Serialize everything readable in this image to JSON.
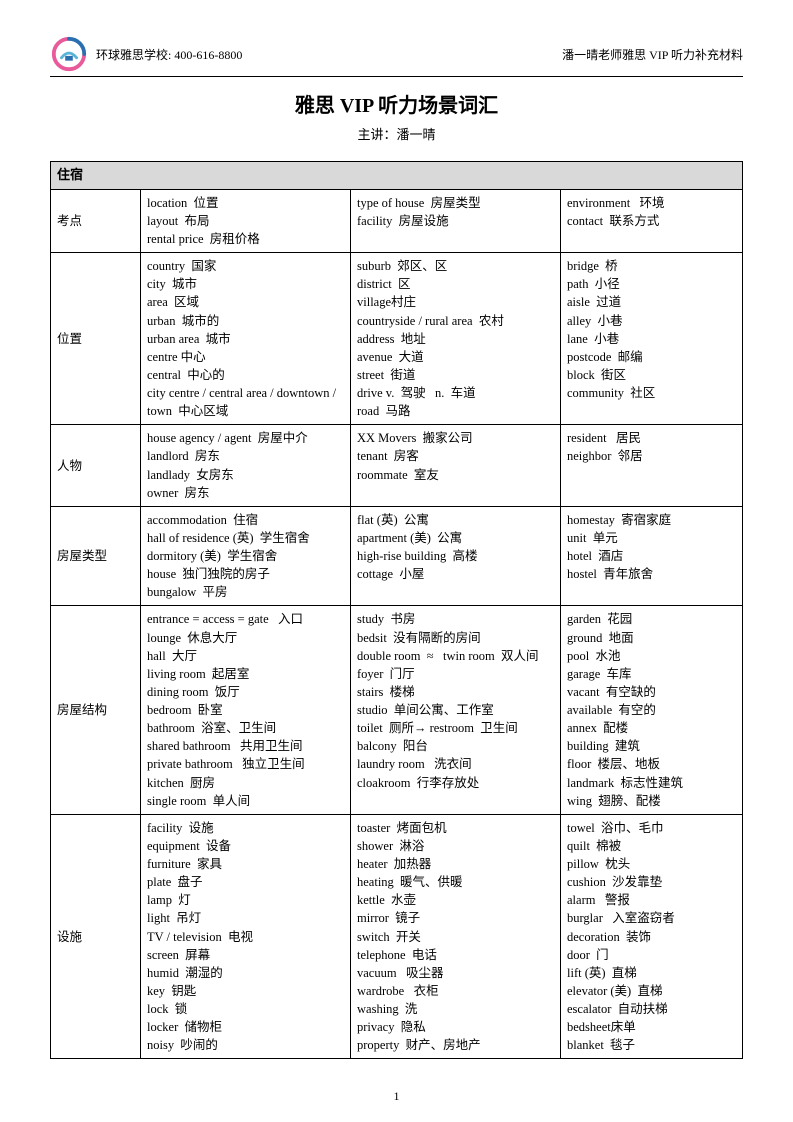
{
  "header": {
    "left_text": "环球雅思学校: 400-616-8800",
    "right_text": "潘一晴老师雅思 VIP 听力补充材料"
  },
  "title": "雅思 VIP 听力场景词汇",
  "subtitle": "主讲：潘一晴",
  "section_title": "住宿",
  "page_number": "1",
  "rows": [
    {
      "label": "考点",
      "c1": [
        "location  位置",
        "layout  布局",
        "rental price  房租价格"
      ],
      "c2": [
        "type of house  房屋类型",
        "facility  房屋设施"
      ],
      "c3": [
        "environment   环境",
        "contact  联系方式"
      ]
    },
    {
      "label": "位置",
      "c1": [
        "country  国家",
        "city  城市",
        "area  区域",
        "urban  城市的",
        "urban area  城市",
        "centre 中心",
        "central  中心的",
        "city centre / central area / downtown / town  中心区域"
      ],
      "c2": [
        "suburb  郊区、区",
        "district  区",
        "village村庄",
        "countryside / rural area  农村",
        "address  地址",
        "avenue  大道",
        "street  街道",
        "drive v.  驾驶   n.  车道",
        "road  马路"
      ],
      "c3": [
        "bridge  桥",
        "path  小径",
        "aisle  过道",
        "alley  小巷",
        "lane  小巷",
        "postcode  邮编",
        "block  街区",
        "community  社区"
      ]
    },
    {
      "label": "人物",
      "c1": [
        "house agency / agent  房屋中介",
        "landlord  房东",
        "landlady  女房东",
        "owner  房东"
      ],
      "c2": [
        "XX Movers  搬家公司",
        "tenant  房客",
        "roommate  室友"
      ],
      "c3": [
        "resident   居民",
        "neighbor  邻居"
      ]
    },
    {
      "label": "房屋类型",
      "c1": [
        "accommodation  住宿",
        "hall of residence (英)  学生宿舍",
        "dormitory (美)  学生宿舍",
        "house  独门独院的房子",
        "bungalow  平房"
      ],
      "c2": [
        "flat (英)  公寓",
        "apartment (美)  公寓",
        "high-rise building  高楼",
        "cottage  小屋"
      ],
      "c3": [
        "homestay  寄宿家庭",
        "unit  单元",
        "hotel  酒店",
        "hostel  青年旅舍"
      ]
    },
    {
      "label": "房屋结构",
      "c1": [
        "entrance = access = gate   入口",
        "lounge  休息大厅",
        "hall  大厅",
        "living room  起居室",
        "dining room  饭厅",
        "bedroom  卧室",
        "bathroom  浴室、卫生间",
        "shared bathroom   共用卫生间",
        "private bathroom   独立卫生间",
        "kitchen  厨房",
        "single room  单人间"
      ],
      "c2": [
        "study  书房",
        "bedsit  没有隔断的房间",
        "double room  ≈   twin room  双人间",
        "foyer  门厅",
        "stairs  楼梯",
        "studio  单间公寓、工作室",
        "toilet  厕所→ restroom  卫生间",
        "balcony  阳台",
        "laundry room   洗衣间",
        "cloakroom  行李存放处"
      ],
      "c3": [
        "garden  花园",
        "ground  地面",
        "pool  水池",
        "garage  车库",
        "vacant  有空缺的",
        "available  有空的",
        "annex  配楼",
        "building  建筑",
        "floor  楼层、地板",
        "landmark  标志性建筑",
        "wing  翅膀、配楼"
      ]
    },
    {
      "label": "设施",
      "c1": [
        "facility  设施",
        "equipment  设备",
        "furniture  家具",
        "plate  盘子",
        "lamp  灯",
        "light  吊灯",
        "TV / television  电视",
        "screen  屏幕",
        "humid  潮湿的",
        "key  钥匙",
        "lock  锁",
        "locker  储物柜",
        "noisy  吵闹的"
      ],
      "c2": [
        "toaster  烤面包机",
        "shower  淋浴",
        "heater  加热器",
        "heating  暖气、供暖",
        "kettle  水壶",
        "mirror  镜子",
        "switch  开关",
        "telephone  电话",
        "vacuum   吸尘器",
        "wardrobe   衣柜",
        "washing  洗",
        "privacy  隐私",
        "property  财产、房地产"
      ],
      "c3": [
        "towel  浴巾、毛巾",
        "quilt  棉被",
        "pillow  枕头",
        "cushion  沙发靠垫",
        "alarm   警报",
        "burglar   入室盗窃者",
        "decoration  装饰",
        "door  门",
        "lift (英)  直梯",
        "elevator (美)  直梯",
        "escalator  自动扶梯",
        "bedsheet床单",
        "blanket  毯子"
      ]
    }
  ],
  "logo_colors": {
    "pink": "#e85a9a",
    "blue": "#2a6fb0",
    "cyan": "#5ab5d8"
  }
}
